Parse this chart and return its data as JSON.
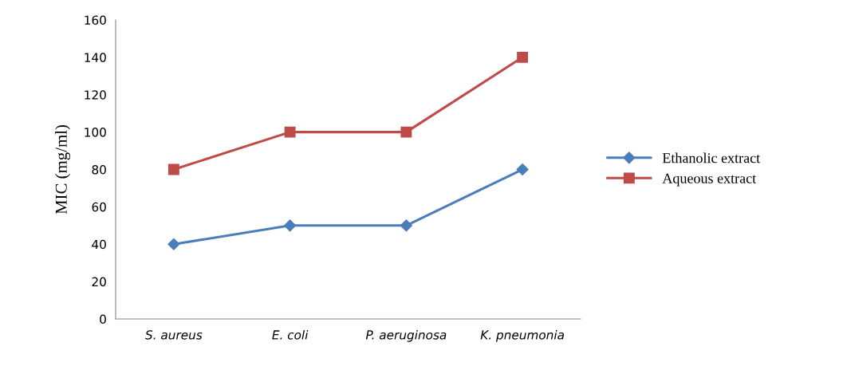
{
  "chart_data": {
    "type": "line",
    "ylabel": "MIC (mg/ml)",
    "categories": [
      "S. aureus",
      "E. coli",
      "P. aeruginosa",
      "K. pneumonia"
    ],
    "series": [
      {
        "name": "Ethanolic extract",
        "color": "#4a7ebb",
        "marker": "diamond",
        "values": [
          40,
          50,
          50,
          80
        ]
      },
      {
        "name": "Aqueous extract",
        "color": "#be4b48",
        "marker": "square",
        "values": [
          80,
          100,
          100,
          140
        ]
      }
    ],
    "ylim": [
      0,
      160
    ],
    "yticks": [
      0,
      20,
      40,
      60,
      80,
      100,
      120,
      140,
      160
    ],
    "grid": false,
    "legend": "right",
    "line_style": "solid"
  }
}
